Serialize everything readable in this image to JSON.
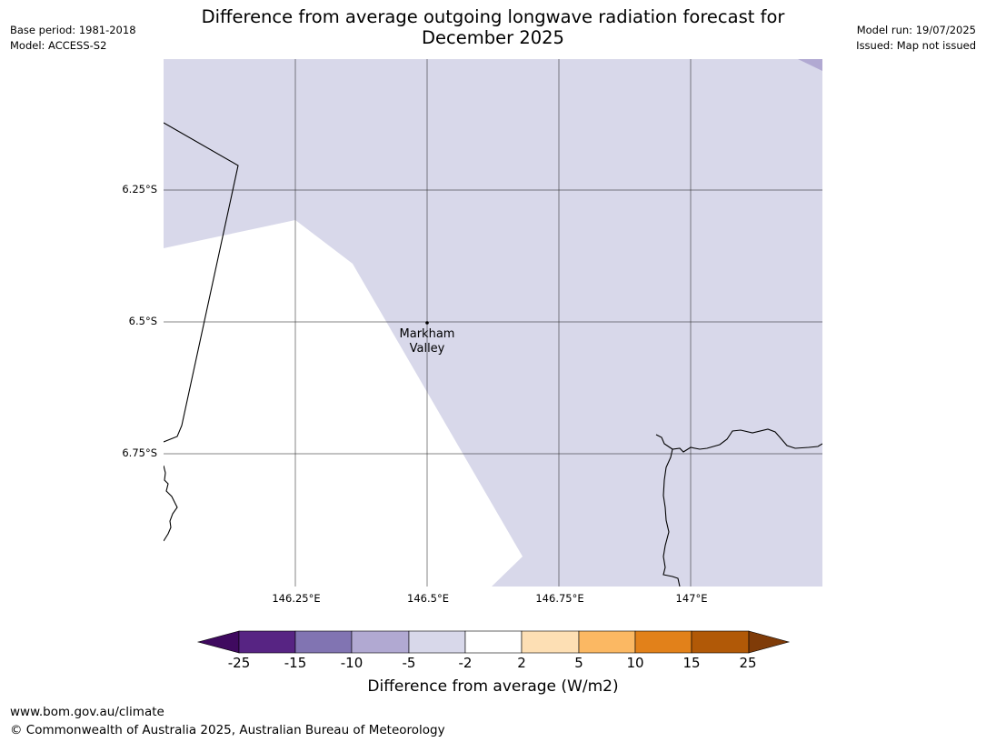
{
  "title": "Difference from average outgoing longwave radiation forecast for December 2025",
  "base_period": "Base period: 1981-2018",
  "model": "Model: ACCESS-S2",
  "model_run": "Model run: 19/07/2025",
  "issued": "Issued: Map not issued",
  "map": {
    "lat_labels": [
      "6.25°S",
      "6.5°S",
      "6.75°S"
    ],
    "lon_labels": [
      "146.25°E",
      "146.5°E",
      "146.75°E",
      "147°E"
    ],
    "place_name_line1": "Markham",
    "place_name_line2": "Valley",
    "anomaly_fill_color": "#d8d8ea",
    "corner_fill_color": "#b1a9d2"
  },
  "colorbar": {
    "tick_labels": [
      "-25",
      "-15",
      "-10",
      "-5",
      "-2",
      "2",
      "5",
      "10",
      "15",
      "25"
    ],
    "colors": [
      "#3f0a5f",
      "#572483",
      "#8174b2",
      "#b1a9d2",
      "#d8d8ea",
      "#ffffff",
      "#fddfb4",
      "#fbb863",
      "#e2811a",
      "#b15907",
      "#7f3b08"
    ],
    "label": "Difference from average (W/m2)"
  },
  "footer": {
    "url": "www.bom.gov.au/climate",
    "copyright": "© Commonwealth of Australia 2025, Australian Bureau of Meteorology"
  }
}
